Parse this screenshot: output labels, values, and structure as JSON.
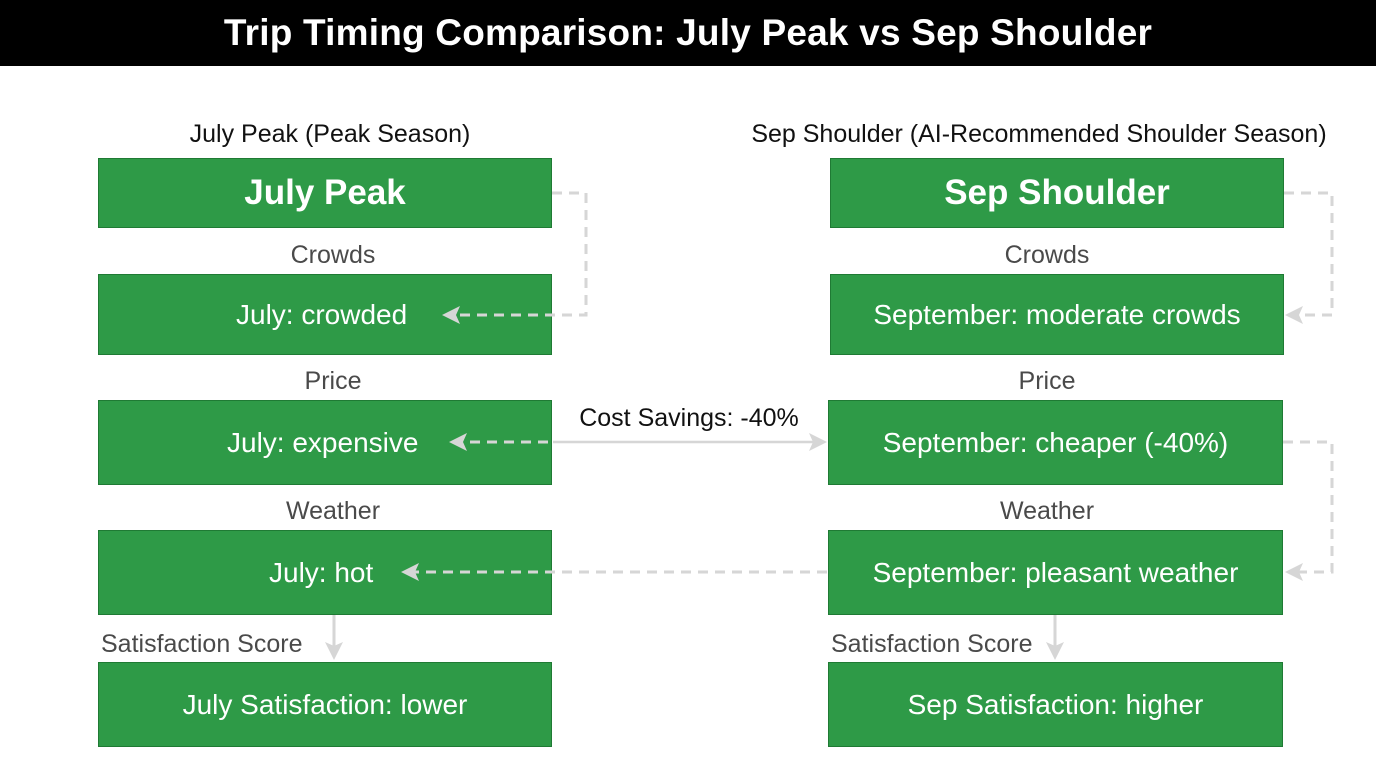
{
  "title": "Trip Timing Comparison: July Peak vs Sep Shoulder",
  "left": {
    "header": "July Peak (Peak Season)",
    "name": "July Peak",
    "crowds_label": "Crowds",
    "crowds": "July: crowded",
    "price_label": "Price",
    "price": "July: expensive",
    "weather_label": "Weather",
    "weather": "July: hot",
    "satisfaction_label": "Satisfaction Score",
    "satisfaction": "July Satisfaction: lower"
  },
  "right": {
    "header": "Sep Shoulder (AI-Recommended Shoulder Season)",
    "name": "Sep Shoulder",
    "crowds_label": "Crowds",
    "crowds": "September: moderate crowds",
    "price_label": "Price",
    "price": "September: cheaper (-40%)",
    "weather_label": "Weather",
    "weather": "September: pleasant weather",
    "satisfaction_label": "Satisfaction Score",
    "satisfaction": "Sep Satisfaction: higher"
  },
  "cost_savings": "Cost Savings: -40%",
  "colors": {
    "title_bg": "#000000",
    "box_fill": "#2e9a47",
    "box_border": "#1f7a34",
    "connector": "#d6d6d6"
  }
}
